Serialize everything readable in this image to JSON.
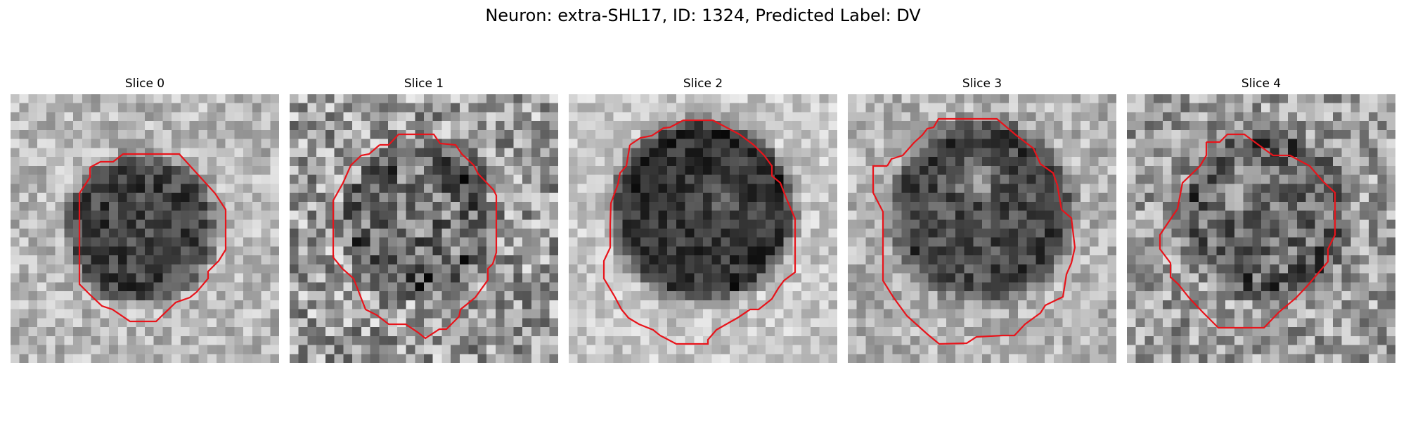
{
  "figure": {
    "title": "Neuron: extra-SHL17, ID: 1324, Predicted Label: DV"
  },
  "panels": [
    {
      "title": "Slice 0"
    },
    {
      "title": "Slice 1"
    },
    {
      "title": "Slice 2"
    },
    {
      "title": "Slice 3"
    },
    {
      "title": "Slice 4"
    }
  ],
  "colors": {
    "contour": "#e8141b",
    "colormap": "gray"
  }
}
